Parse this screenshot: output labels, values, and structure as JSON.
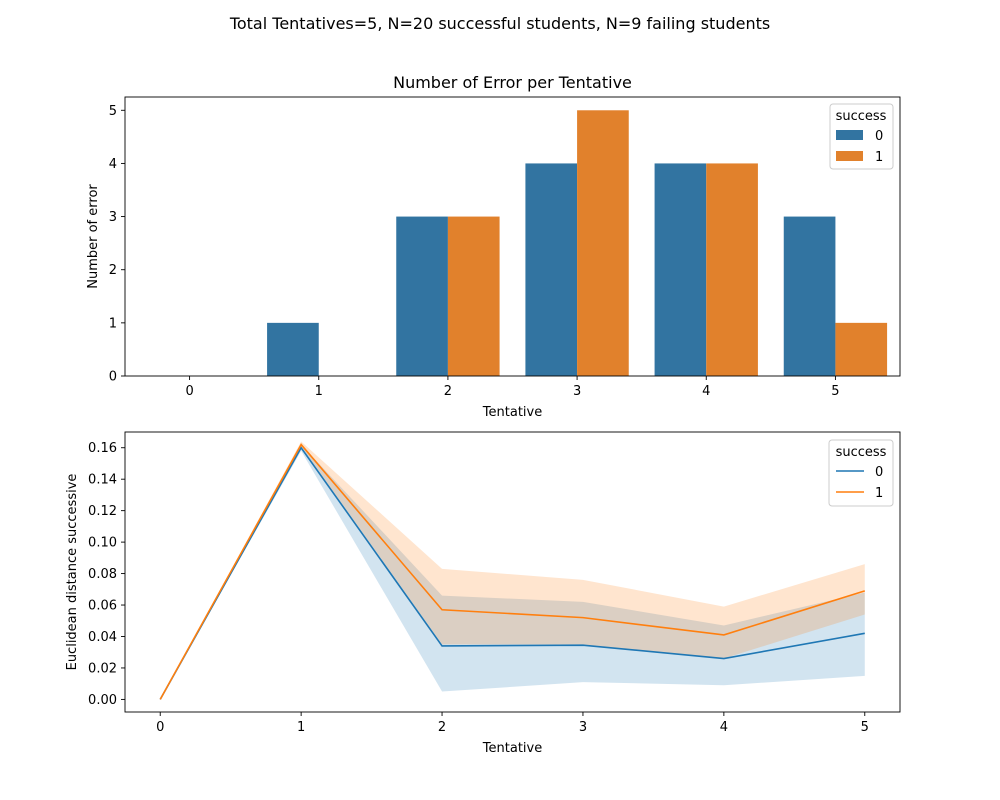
{
  "suptitle": "Total Tentatives=5, N=20 successful students, N=9 failing students",
  "colors": {
    "series0": "#3274a1",
    "series1": "#e1812c",
    "line0": "#1f77b4",
    "line1": "#ff7f0e"
  },
  "chart_data": [
    {
      "type": "bar",
      "title": "Number of Error per Tentative",
      "xlabel": "Tentative",
      "ylabel": "Number of error",
      "categories": [
        "0",
        "1",
        "2",
        "3",
        "4",
        "5"
      ],
      "ylim": [
        0,
        5.25
      ],
      "yticks": [
        0,
        1,
        2,
        3,
        4,
        5
      ],
      "legend": {
        "title": "success",
        "position": "top-right"
      },
      "series": [
        {
          "name": "0",
          "values": [
            0,
            1,
            3,
            4,
            4,
            3
          ]
        },
        {
          "name": "1",
          "values": [
            0,
            0,
            3,
            5,
            4,
            1
          ]
        }
      ]
    },
    {
      "type": "line",
      "title": "",
      "xlabel": "Tentative",
      "ylabel": "Euclidean distance successive",
      "x": [
        0,
        1,
        2,
        3,
        4,
        5
      ],
      "xticks": [
        "0",
        "1",
        "2",
        "3",
        "4",
        "5"
      ],
      "ylim": [
        -0.008,
        0.17
      ],
      "yticks": [
        "0.00",
        "0.02",
        "0.04",
        "0.06",
        "0.08",
        "0.10",
        "0.12",
        "0.14",
        "0.16"
      ],
      "legend": {
        "title": "success",
        "position": "top-right"
      },
      "series": [
        {
          "name": "0",
          "values": [
            0.0,
            0.16,
            0.034,
            0.0345,
            0.026,
            0.042
          ],
          "ci_low": [
            0.0,
            0.158,
            0.005,
            0.011,
            0.009,
            0.015
          ],
          "ci_high": [
            0.0,
            0.162,
            0.066,
            0.062,
            0.047,
            0.068
          ]
        },
        {
          "name": "1",
          "values": [
            0.0,
            0.162,
            0.057,
            0.052,
            0.041,
            0.069
          ],
          "ci_low": [
            0.0,
            0.161,
            0.035,
            0.035,
            0.026,
            0.054
          ],
          "ci_high": [
            0.0,
            0.164,
            0.083,
            0.076,
            0.059,
            0.086
          ]
        }
      ]
    }
  ]
}
